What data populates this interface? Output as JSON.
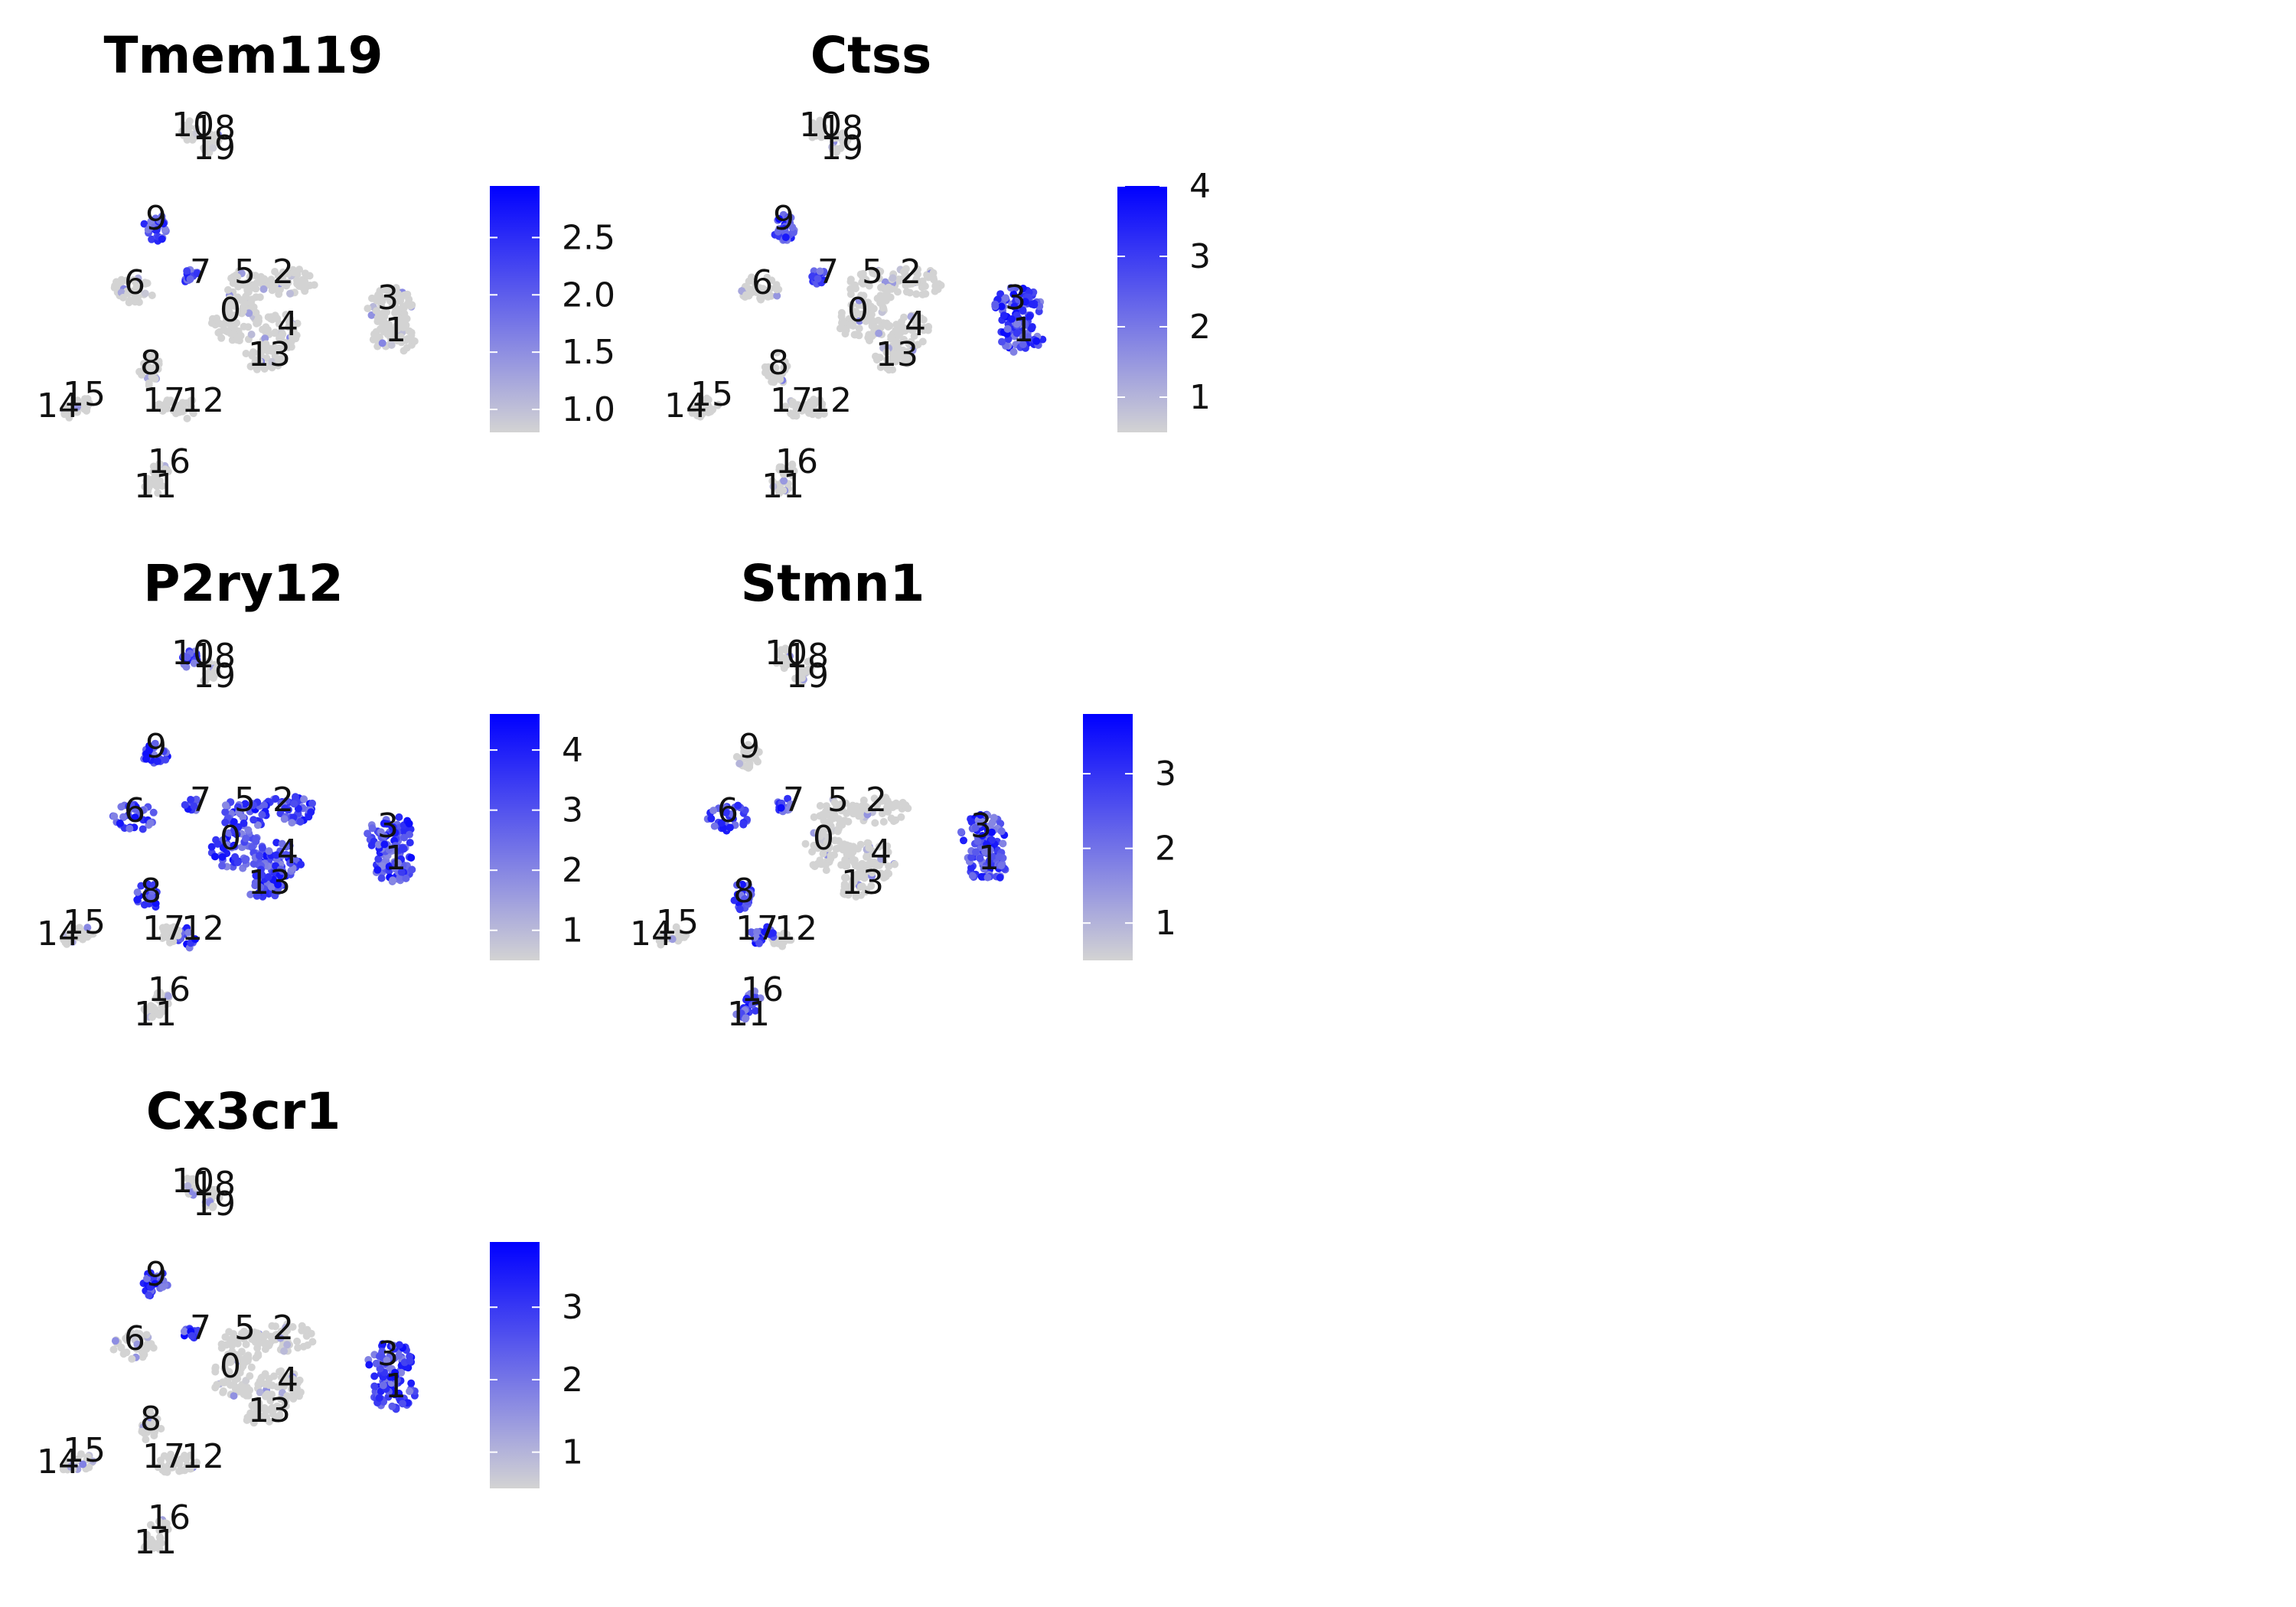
{
  "colors": {
    "low": "#d3d3d3",
    "high": "#0000ff",
    "background": "#ffffff"
  },
  "chart_data": [
    {
      "type": "scatter",
      "title": "Tmem119",
      "colorbar": {
        "min": 0.8,
        "max": 2.95,
        "ticks": [
          1.0,
          1.5,
          2.0,
          2.5
        ],
        "tick_labels": [
          "1.0",
          "1.5",
          "2.0",
          "2.5"
        ]
      },
      "cluster_labels": [
        "0",
        "1",
        "2",
        "3",
        "4",
        "5",
        "6",
        "7",
        "8",
        "9",
        "10",
        "11",
        "12",
        "13",
        "14",
        "15",
        "16",
        "17",
        "18",
        "19"
      ],
      "hot_clusters": [
        9,
        7
      ],
      "grid": false,
      "legend": "right"
    },
    {
      "type": "scatter",
      "title": "Ctss",
      "colorbar": {
        "min": 0.5,
        "max": 4.0,
        "ticks": [
          1,
          2,
          3,
          4
        ],
        "tick_labels": [
          "1",
          "2",
          "3",
          "4"
        ]
      },
      "cluster_labels": [
        "0",
        "1",
        "2",
        "3",
        "4",
        "5",
        "6",
        "7",
        "8",
        "9",
        "10",
        "11",
        "12",
        "13",
        "14",
        "15",
        "16",
        "17",
        "18",
        "19"
      ],
      "hot_clusters": [
        9,
        7,
        1,
        3
      ],
      "grid": false,
      "legend": "right"
    },
    {
      "type": "scatter",
      "title": "P2ry12",
      "colorbar": {
        "min": 0.5,
        "max": 4.6,
        "ticks": [
          1,
          2,
          3,
          4
        ],
        "tick_labels": [
          "1",
          "2",
          "3",
          "4"
        ]
      },
      "cluster_labels": [
        "0",
        "1",
        "2",
        "3",
        "4",
        "5",
        "6",
        "7",
        "8",
        "9",
        "10",
        "11",
        "12",
        "13",
        "14",
        "15",
        "16",
        "17",
        "18",
        "19"
      ],
      "hot_clusters": [
        9,
        7,
        0,
        2,
        5,
        6,
        4,
        13,
        3,
        1,
        10,
        8,
        12
      ],
      "grid": false,
      "legend": "right"
    },
    {
      "type": "scatter",
      "title": "Stmn1",
      "colorbar": {
        "min": 0.5,
        "max": 3.8,
        "ticks": [
          1,
          2,
          3
        ],
        "tick_labels": [
          "1",
          "2",
          "3"
        ]
      },
      "cluster_labels": [
        "0",
        "1",
        "2",
        "3",
        "4",
        "5",
        "6",
        "7",
        "8",
        "9",
        "10",
        "11",
        "12",
        "13",
        "14",
        "15",
        "16",
        "17",
        "18",
        "19"
      ],
      "hot_clusters": [
        3,
        1,
        7,
        6,
        8,
        17,
        11,
        16
      ],
      "grid": false,
      "legend": "right"
    },
    {
      "type": "scatter",
      "title": "Cx3cr1",
      "colorbar": {
        "min": 0.5,
        "max": 3.9,
        "ticks": [
          1,
          2,
          3
        ],
        "tick_labels": [
          "1",
          "2",
          "3"
        ]
      },
      "cluster_labels": [
        "0",
        "1",
        "2",
        "3",
        "4",
        "5",
        "6",
        "7",
        "8",
        "9",
        "10",
        "11",
        "12",
        "13",
        "14",
        "15",
        "16",
        "17",
        "18",
        "19"
      ],
      "hot_clusters": [
        9,
        7,
        1,
        3
      ],
      "grid": false,
      "legend": "right"
    }
  ]
}
